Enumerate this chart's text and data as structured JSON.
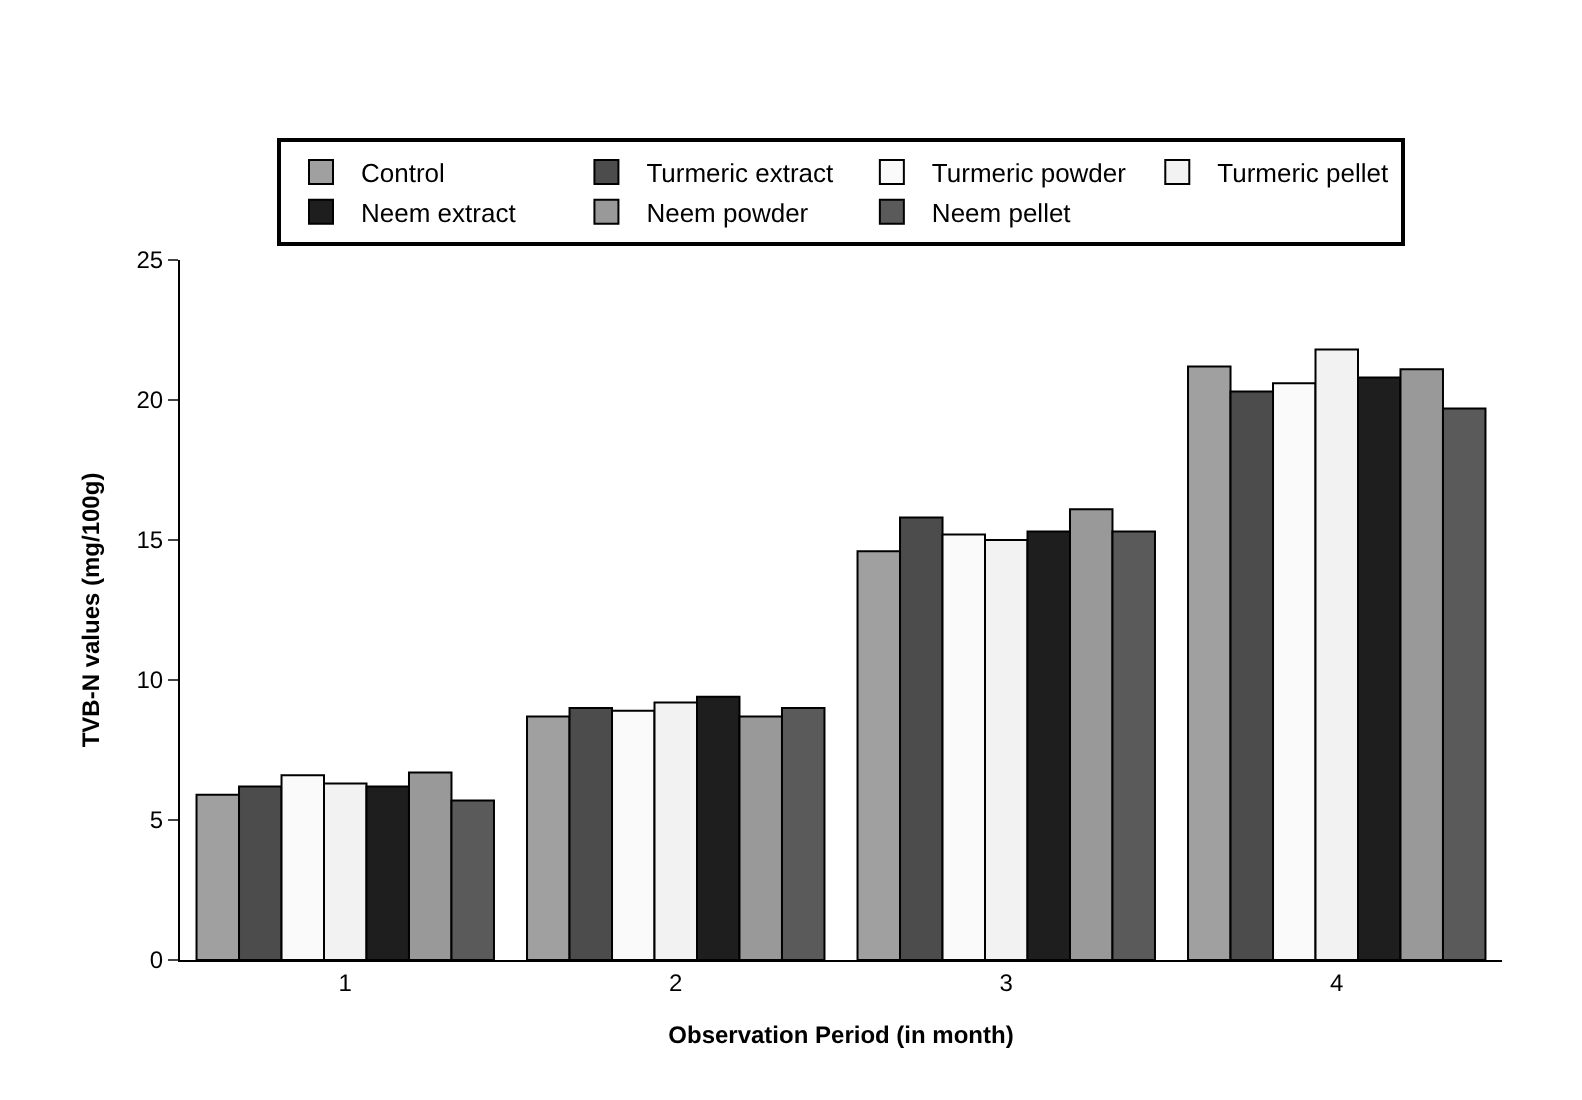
{
  "chart_data": {
    "type": "bar",
    "xlabel": "Observation Period (in month)",
    "ylabel": "TVB-N values (mg/100g)",
    "categories": [
      "1",
      "2",
      "3",
      "4"
    ],
    "series": [
      {
        "name": "Control",
        "color": "#a0a0a0",
        "values": [
          5.9,
          8.7,
          14.6,
          21.2
        ]
      },
      {
        "name": "Turmeric extract",
        "color": "#4c4c4c",
        "values": [
          6.2,
          9.0,
          15.8,
          20.3
        ]
      },
      {
        "name": "Turmeric powder",
        "color": "#fafafa",
        "values": [
          6.6,
          8.9,
          15.2,
          20.6
        ]
      },
      {
        "name": "Turmeric pellet",
        "color": "#f2f2f2",
        "values": [
          6.3,
          9.2,
          15.0,
          21.8
        ]
      },
      {
        "name": "Neem extract",
        "color": "#1e1e1e",
        "values": [
          6.2,
          9.4,
          15.3,
          20.8
        ]
      },
      {
        "name": "Neem powder",
        "color": "#999999",
        "values": [
          6.7,
          8.7,
          16.1,
          21.1
        ]
      },
      {
        "name": "Neem pellet",
        "color": "#5a5a5a",
        "values": [
          5.7,
          9.0,
          15.3,
          19.7
        ]
      }
    ],
    "ylim": [
      0,
      25
    ],
    "yticks": [
      0,
      5,
      10,
      15,
      20,
      25
    ],
    "legend": "top"
  }
}
